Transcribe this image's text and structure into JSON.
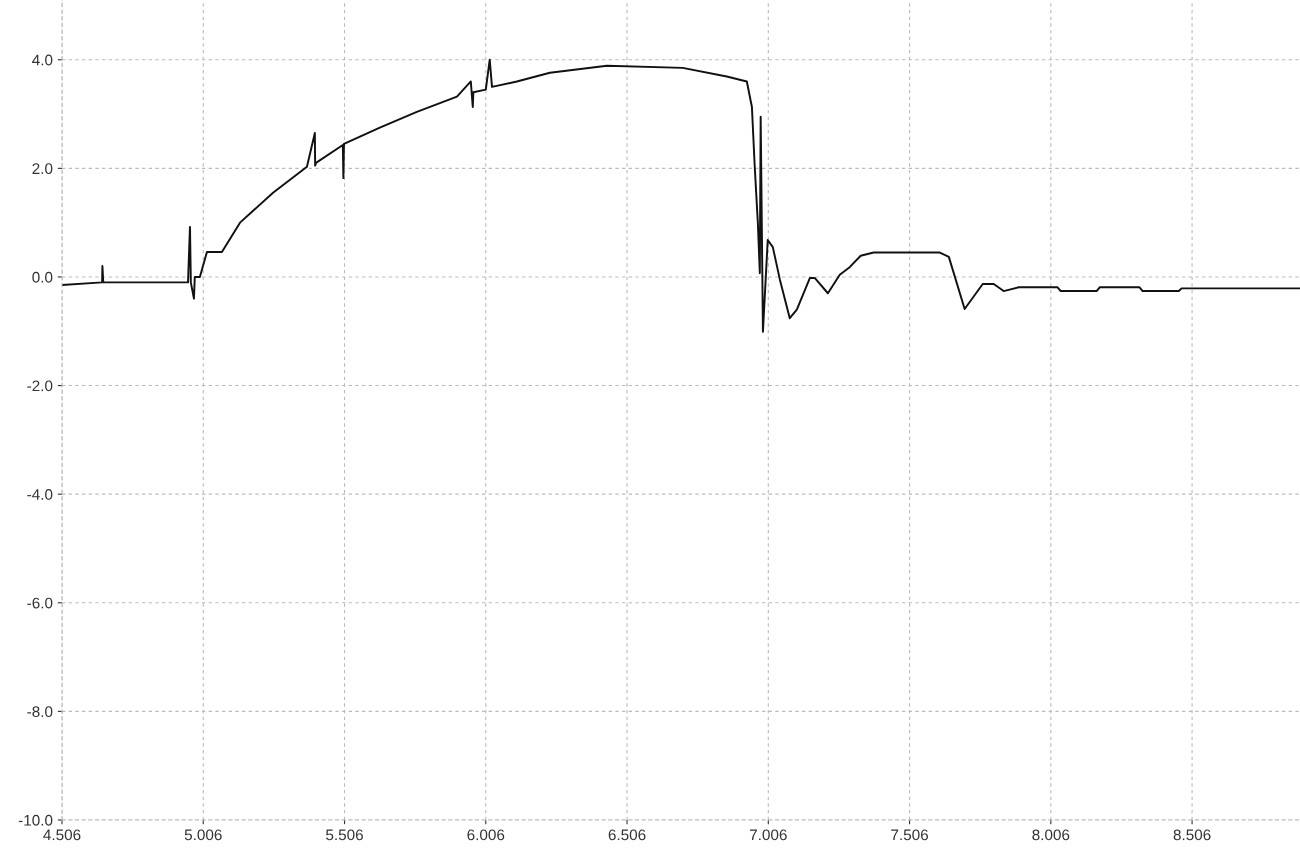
{
  "chart_data": {
    "type": "line",
    "x": [
      4.506,
      4.648,
      4.649,
      4.652,
      4.952,
      4.959,
      4.962,
      4.973,
      4.976,
      4.994,
      5.019,
      5.072,
      5.136,
      5.253,
      5.373,
      5.401,
      5.402,
      5.405,
      5.5,
      5.502,
      5.504,
      5.631,
      5.762,
      5.904,
      5.953,
      5.96,
      5.962,
      6.006,
      6.02,
      6.028,
      6.116,
      6.233,
      6.435,
      6.703,
      6.859,
      6.93,
      6.948,
      6.958,
      6.969,
      6.976,
      6.979,
      6.987,
      7.004,
      7.022,
      7.047,
      7.082,
      7.107,
      7.153,
      7.171,
      7.217,
      7.259,
      7.294,
      7.333,
      7.379,
      7.613,
      7.645,
      7.701,
      7.765,
      7.804,
      7.839,
      7.892,
      8.03,
      8.041,
      8.168,
      8.179,
      8.32,
      8.331,
      8.459,
      8.469,
      8.887
    ],
    "series": [
      {
        "color": "#111111",
        "values": [
          -0.15,
          -0.1,
          0.2,
          -0.1,
          -0.1,
          0.92,
          -0.1,
          -0.4,
          0.0,
          0.0,
          0.46,
          0.46,
          1.0,
          1.55,
          2.03,
          2.65,
          2.05,
          2.1,
          2.43,
          1.82,
          2.45,
          2.75,
          3.04,
          3.32,
          3.6,
          3.13,
          3.4,
          3.45,
          4.0,
          3.5,
          3.6,
          3.76,
          3.89,
          3.85,
          3.69,
          3.6,
          3.13,
          2.03,
          1.0,
          0.07,
          2.95,
          -1.01,
          0.68,
          0.55,
          -0.05,
          -0.76,
          -0.6,
          -0.02,
          -0.02,
          -0.3,
          0.04,
          0.18,
          0.39,
          0.45,
          0.45,
          0.37,
          -0.59,
          -0.13,
          -0.13,
          -0.26,
          -0.19,
          -0.19,
          -0.26,
          -0.26,
          -0.19,
          -0.19,
          -0.26,
          -0.26,
          -0.21,
          -0.21
        ]
      }
    ],
    "xlim": [
      4.506,
      8.888
    ],
    "ylim": [
      -10,
      5.1
    ],
    "xticks": [
      4.506,
      5.006,
      5.506,
      6.006,
      6.506,
      7.006,
      7.506,
      8.006,
      8.506
    ],
    "yticks": [
      {
        "value": -10,
        "label": "-10.0"
      },
      {
        "value": -8,
        "label": "-8.0"
      },
      {
        "value": -6,
        "label": "-6.0"
      },
      {
        "value": -4,
        "label": "-4.0"
      },
      {
        "value": -2,
        "label": "-2.0"
      },
      {
        "value": 0,
        "label": "0.0"
      },
      {
        "value": 2,
        "label": "2.0"
      },
      {
        "value": 4,
        "label": "4.0"
      }
    ],
    "grid": true,
    "line_style": "solid"
  }
}
